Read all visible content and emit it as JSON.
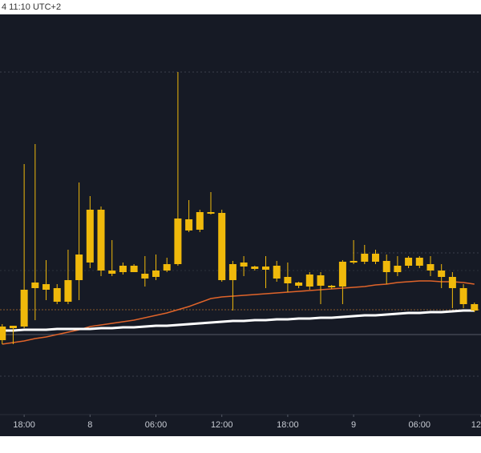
{
  "chart_data": {
    "type": "candlestick",
    "timestamp": "4 11:10 UTC+2",
    "color": "#f0b90b",
    "open": [
      93,
      108,
      110,
      158,
      163,
      158,
      141,
      168,
      190,
      256,
      180,
      178,
      186,
      176,
      172,
      180,
      188,
      244,
      231,
      253,
      252,
      168,
      185,
      185,
      181,
      186,
      172,
      165,
      160,
      174,
      161,
      160,
      190,
      191,
      201,
      192,
      178,
      186,
      196,
      188,
      180,
      172,
      158,
      138
    ],
    "high": [
      113,
      111,
      313,
      338,
      193,
      163,
      206,
      290,
      273,
      260,
      218,
      190,
      188,
      198,
      200,
      196,
      428,
      268,
      256,
      278,
      256,
      192,
      198,
      186,
      198,
      192,
      190,
      166,
      178,
      178,
      162,
      193,
      218,
      212,
      206,
      200,
      198,
      198,
      198,
      198,
      188,
      178,
      163,
      140
    ],
    "low": [
      88,
      88,
      108,
      118,
      143,
      138,
      138,
      143,
      183,
      173,
      173,
      175,
      178,
      160,
      168,
      178,
      186,
      228,
      228,
      250,
      166,
      130,
      173,
      180,
      158,
      166,
      153,
      158,
      156,
      138,
      157,
      138,
      188,
      188,
      188,
      163,
      173,
      183,
      183,
      173,
      158,
      133,
      133,
      128
    ],
    "close": [
      110,
      111,
      156,
      165,
      156,
      141,
      168,
      200,
      256,
      180,
      176,
      186,
      178,
      170,
      180,
      188,
      245,
      230,
      253,
      251,
      168,
      188,
      190,
      182,
      185,
      170,
      164,
      161,
      175,
      161,
      159,
      191,
      192,
      201,
      191,
      178,
      186,
      196,
      186,
      180,
      172,
      158,
      138,
      130
    ],
    "lines": [
      {
        "color": "#e0642a",
        "values": [
          88,
          90,
          92,
          95,
          97,
          100,
          103,
          106,
          110,
          112,
          114,
          116,
          118,
          121,
          124,
          127,
          131,
          135,
          140,
          145,
          147,
          148,
          149,
          150,
          151,
          152,
          153,
          154,
          155,
          156,
          157,
          158,
          159,
          160,
          162,
          163,
          165,
          166,
          167,
          167,
          166,
          166,
          165,
          163
        ]
      },
      {
        "color": "#ffffff",
        "values": [
          105,
          105,
          106,
          106,
          106,
          107,
          107,
          107,
          107,
          108,
          108,
          109,
          109,
          110,
          111,
          111,
          112,
          113,
          114,
          115,
          116,
          117,
          117,
          118,
          118,
          119,
          119,
          120,
          120,
          121,
          121,
          122,
          123,
          124,
          124,
          125,
          126,
          127,
          127,
          128,
          128,
          129,
          130,
          130
        ]
      }
    ],
    "xlim": [
      -0.2,
      43.6
    ],
    "xticks": [
      {
        "value": 2,
        "label": "18:00"
      },
      {
        "value": 8,
        "label": "8"
      },
      {
        "value": 14,
        "label": "06:00"
      },
      {
        "value": 20,
        "label": "12:00"
      },
      {
        "value": 26,
        "label": "18:00"
      },
      {
        "value": 32,
        "label": "9"
      },
      {
        "value": 38,
        "label": "06:00"
      },
      {
        "value": 43.6,
        "label": "12"
      }
    ],
    "ylim": [
      0,
      500
    ]
  }
}
